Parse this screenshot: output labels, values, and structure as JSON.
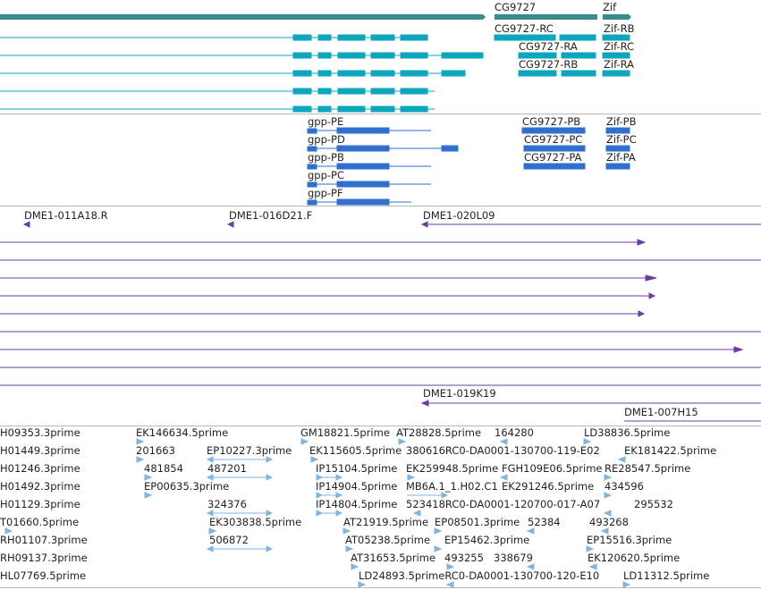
{
  "colors": {
    "gene": "#3a8c8c",
    "transcript": "#0ea5bf",
    "protein": "#2f6fd0",
    "clone": "#6a3fa0",
    "est": "#7fb6e0",
    "separator": "#b9b9b9"
  },
  "tracks": {
    "genes": {
      "labels": [
        "CG9727",
        "Zif"
      ]
    },
    "transcripts": {
      "labels": [
        "CG9727-RC",
        "CG9727-RA",
        "CG9727-RB",
        "Zif-RB",
        "Zif-RC",
        "Zif-RA"
      ]
    },
    "proteins": {
      "labels": [
        "gpp-PE",
        "gpp-PD",
        "gpp-PB",
        "gpp-PC",
        "gpp-PF",
        "CG9727-PB",
        "CG9727-PC",
        "CG9727-PA",
        "Zif-PB",
        "Zif-PC",
        "Zif-PA"
      ]
    },
    "clones": {
      "labels": [
        "DME1-011A18.R",
        "DME1-016D21.F",
        "DME1-020L09",
        "DME1-019K19",
        "DME1-007H15"
      ]
    },
    "ests": {
      "labels": [
        "H09353.3prime",
        "EK146634.5prime",
        "GM18821.5prime",
        "AT28828.5prime",
        "164280",
        "LD38836.5prime",
        "H01449.3prime",
        "201663",
        "EP10227.3prime",
        "EK115605.5prime",
        "380616RC0-DA0001-130700-119-E02",
        "EK181422.5prime",
        "H01246.3prime",
        "481854",
        "487201",
        "IP15104.5prime",
        "EK259948.5prime",
        "FGH109E06.5prime",
        "RE28547.5prime",
        "H01492.3prime",
        "EP00635.3prime",
        "IP14904.5prime",
        "MB6A.1_1.H02.C1",
        "EK291246.5prime",
        "434596",
        "H01129.3prime",
        "324376",
        "IP14804.5prime",
        "523418RC0-DA0001-120700-017-A07",
        "295532",
        "T01660.5prime",
        "EK303838.5prime",
        "AT21919.5prime",
        "EP08501.3prime",
        "52384",
        "493268",
        "RH01107.3prime",
        "506872",
        "AT05238.5prime",
        "EP15462.3prime",
        "EP15516.3prime",
        "RH09137.3prime",
        "AT31653.5prime",
        "493255",
        "338679",
        "EK120620.5prime",
        "HL07769.5prime",
        "LD24893.5primeRC0-DA0001-130700-120-E10",
        "LD11312.5prime"
      ]
    }
  }
}
